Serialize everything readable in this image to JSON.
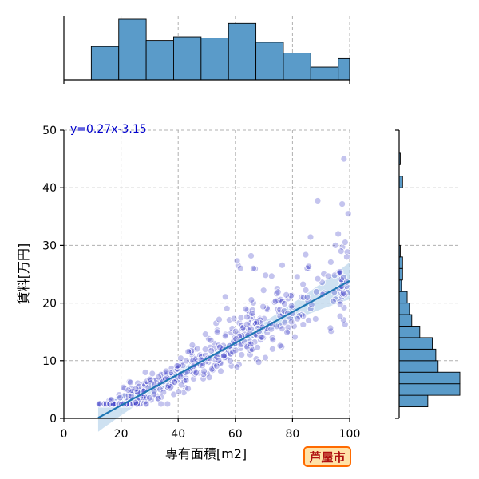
{
  "chart_data": {
    "type": "scatter",
    "xlabel": "専有面積[m2]",
    "ylabel": "賃料[万円]",
    "xlim": [
      0,
      100
    ],
    "ylim": [
      0,
      50
    ],
    "xticks": [
      0,
      20,
      40,
      60,
      80,
      100
    ],
    "yticks": [
      0,
      10,
      20,
      30,
      40,
      50
    ],
    "grid": true,
    "annotation": "y=0.27x-3.15",
    "regression": {
      "slope": 0.27,
      "intercept": -3.15,
      "x_range": [
        12,
        100
      ]
    },
    "colors": {
      "points": "#3c3cc8",
      "regression": "#1f77b4",
      "band": "#a6c8e6",
      "bars": "#5a9bc9",
      "annotation": "#0000cc"
    },
    "x_marginal_histogram": {
      "bin_edges": [
        0,
        9.6,
        19.2,
        28.8,
        38.4,
        48.0,
        57.6,
        67.2,
        76.8,
        86.4,
        96.0,
        105.6
      ],
      "counts": [
        0,
        55,
        100,
        65,
        71,
        69,
        93,
        62,
        44,
        21,
        35
      ],
      "bin_edges_visible_to": 100
    },
    "y_marginal_histogram": {
      "bin_edges": [
        2,
        4,
        6,
        8,
        10,
        12,
        14,
        16,
        18,
        20,
        22,
        24,
        26,
        28,
        30,
        32,
        34,
        36,
        38,
        40,
        42,
        44,
        46,
        48
      ],
      "counts": [
        25,
        53,
        53,
        34,
        32,
        29,
        18,
        11,
        9,
        7,
        2,
        3,
        3,
        1,
        0,
        0,
        0,
        0,
        0,
        3,
        0,
        1,
        0
      ],
      "count_scale_max": 53
    }
  },
  "badge": {
    "city": "芦屋市"
  }
}
